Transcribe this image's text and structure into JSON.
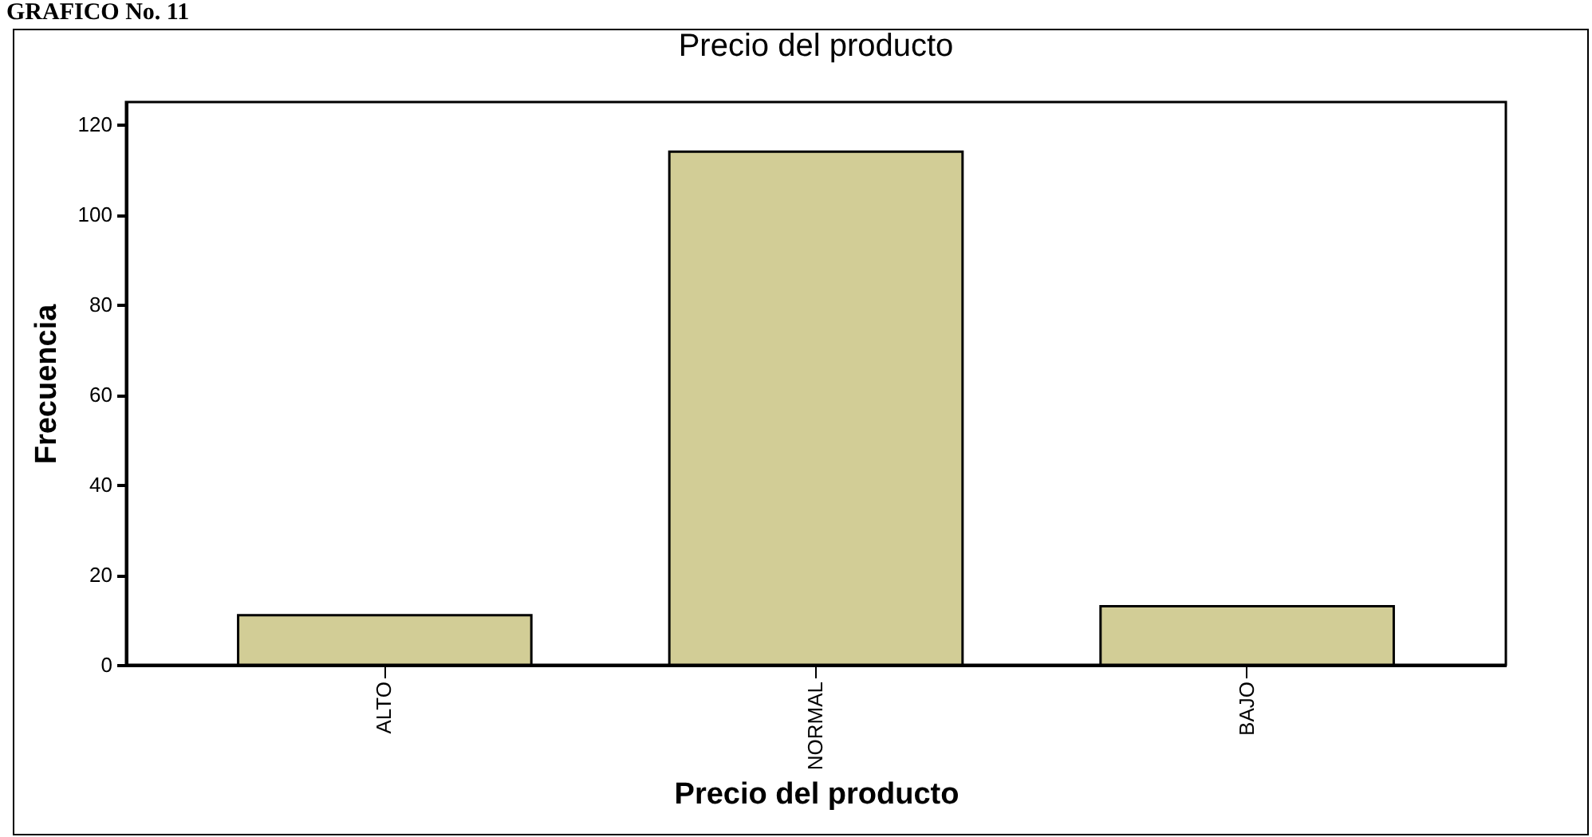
{
  "chart_data": {
    "type": "bar",
    "title": "Precio del producto",
    "xlabel": "Precio del producto",
    "ylabel": "Frecuencia",
    "annotations": [
      "GRAFICO No. 11"
    ],
    "categories": [
      "ALTO",
      "NORMAL",
      "BAJO"
    ],
    "values": [
      11,
      114,
      13
    ],
    "color": "#d2cd96",
    "ylim": [
      0,
      125
    ],
    "yticks": [
      0,
      20,
      40,
      60,
      80,
      100,
      120
    ],
    "grid": false
  }
}
